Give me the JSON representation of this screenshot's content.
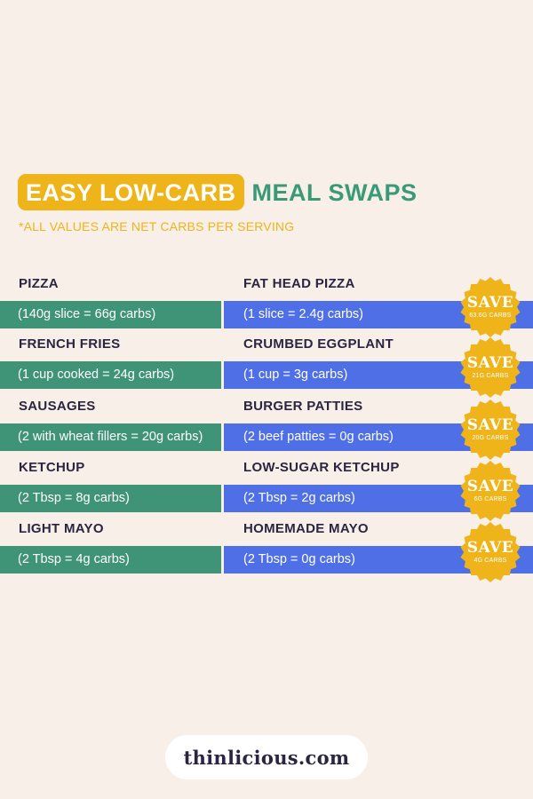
{
  "title": {
    "highlight": "EASY LOW-CARB",
    "rest": "MEAL SWAPS"
  },
  "subtitle": "*ALL VALUES ARE NET CARBS PER SERVING",
  "swaps": [
    {
      "original_name": "PIZZA",
      "original_detail": "(140g slice = 66g carbs)",
      "swap_name": "FAT HEAD PIZZA",
      "swap_detail": "(1 slice = 2.4g carbs)",
      "badge_label": "SAVE",
      "badge_amount": "63.6G CARBS"
    },
    {
      "original_name": "FRENCH FRIES",
      "original_detail": "(1 cup cooked = 24g carbs)",
      "swap_name": "CRUMBED EGGPLANT",
      "swap_detail": "(1 cup = 3g carbs)",
      "badge_label": "SAVE",
      "badge_amount": "21G CARBS"
    },
    {
      "original_name": "SAUSAGES",
      "original_detail": "(2 with wheat fillers = 20g carbs)",
      "swap_name": "BURGER PATTIES",
      "swap_detail": "(2 beef patties = 0g carbs)",
      "badge_label": "SAVE",
      "badge_amount": "20G CARBS"
    },
    {
      "original_name": "KETCHUP",
      "original_detail": "(2 Tbsp = 8g carbs)",
      "swap_name": "LOW-SUGAR KETCHUP",
      "swap_detail": "(2 Tbsp = 2g carbs)",
      "badge_label": "SAVE",
      "badge_amount": "6G CARBS"
    },
    {
      "original_name": "LIGHT MAYO",
      "original_detail": "(2 Tbsp = 4g carbs)",
      "swap_name": "HOMEMADE MAYO",
      "swap_detail": "(2 Tbsp = 0g carbs)",
      "badge_label": "SAVE",
      "badge_amount": "4G CARBS"
    }
  ],
  "logo": "thinlicious.com",
  "colors": {
    "background": "#f7efe8",
    "accent_yellow": "#eeb41a",
    "green": "#3f9478",
    "blue": "#4f6fe6",
    "dark_text": "#2b2540"
  }
}
